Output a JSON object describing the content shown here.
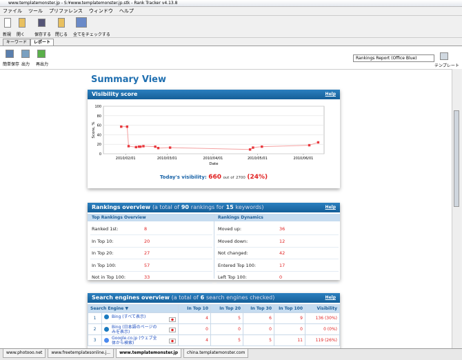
{
  "window": {
    "title": "www.templatemonster.jp - S:¥www.templatemonster.jp.stk - Rank Tracker v4.13.8",
    "menu": [
      "ファイル",
      "ツール",
      "プリファレンス",
      "ウィンドウ",
      "ヘルプ"
    ]
  },
  "toolbar": [
    "新規",
    "開く",
    "保存する",
    "閉じる",
    "全てをチェックする"
  ],
  "tabs": [
    "キーワード",
    "レポート"
  ],
  "report_tools": [
    "簡単保存",
    "出力",
    "再出力"
  ],
  "report_template": {
    "selected": "Rankings Report (Office Blue)",
    "button": "テンプレート"
  },
  "summary_title": "Summary View",
  "visibility": {
    "title": "Visibility score",
    "help": "Help",
    "today_label": "Today's visibility:",
    "score": 660,
    "out_of": "out of",
    "total": 2700,
    "percent": "(24%)"
  },
  "chart_data": {
    "type": "line",
    "y_label": "Score, %",
    "x_label": "Date",
    "x": [
      "2010/01/29",
      "2010/02/02",
      "2010/02/03",
      "2010/02/08",
      "2010/02/10",
      "2010/02/11",
      "2010/02/13",
      "2010/02/21",
      "2010/02/23",
      "2010/03/03",
      "2010/04/26",
      "2010/04/28",
      "2010/05/04",
      "2010/06/05",
      "2010/06/11"
    ],
    "values": [
      57,
      57,
      16,
      14,
      15,
      15,
      16,
      15,
      12,
      13,
      9,
      13,
      15,
      18,
      24
    ],
    "color": "#e8383d",
    "line_color": "#f4a0a0",
    "xlim": [
      "2010/01/17",
      "2010/06/15"
    ],
    "xticks": [
      "2010/02/01",
      "2010/03/01",
      "2010/04/01",
      "2010/05/01",
      "2010/06/01"
    ],
    "ylim": [
      0,
      100
    ],
    "yticks": [
      0,
      20,
      40,
      60,
      80,
      100
    ],
    "grid": true
  },
  "rankings": {
    "title": "Rankings overview",
    "prefix": "(a total of",
    "rankings": 90,
    "middle": "rankings for",
    "keywords": 15,
    "suffix": "keywords)",
    "help": "Help",
    "top": {
      "header": "Top Rankings Overview",
      "rows": [
        [
          "Ranked 1st:",
          8
        ],
        [
          "In Top 10:",
          20
        ],
        [
          "In Top 20:",
          27
        ],
        [
          "In Top 100:",
          57
        ],
        [
          "Not in Top 100:",
          33
        ]
      ]
    },
    "dynamics": {
      "header": "Rankings Dynamics",
      "rows": [
        [
          "Moved up:",
          36
        ],
        [
          "Moved down:",
          12
        ],
        [
          "Not changed:",
          42
        ],
        [
          "Entered Top 100:",
          17
        ],
        [
          "Left Top 100:",
          0
        ]
      ]
    }
  },
  "engines": {
    "title": "Search engines overview",
    "prefix": "(a total of",
    "count": 6,
    "suffix": "search engines checked)",
    "help": "Help",
    "columns": [
      "Search Engine ▼",
      "In Top 10",
      "In Top 20",
      "In Top 30",
      "In Top 100",
      "Visibility"
    ],
    "rows": [
      [
        1,
        "Bing (すべて表示)",
        4,
        5,
        6,
        9,
        "136 (30%)"
      ],
      [
        2,
        "Bing (日本語のページのみを表示)",
        0,
        0,
        0,
        0,
        "0 (0%)"
      ],
      [
        3,
        "Google.co.jp (ウェブ全体から検索)",
        4,
        5,
        5,
        11,
        "119 (26%)"
      ]
    ]
  },
  "bottom_tabs": [
    "www.photooo.net",
    "www.freetemplatesonline.j...",
    "www.templatemonster.jp",
    "china.templatemonster.com"
  ]
}
